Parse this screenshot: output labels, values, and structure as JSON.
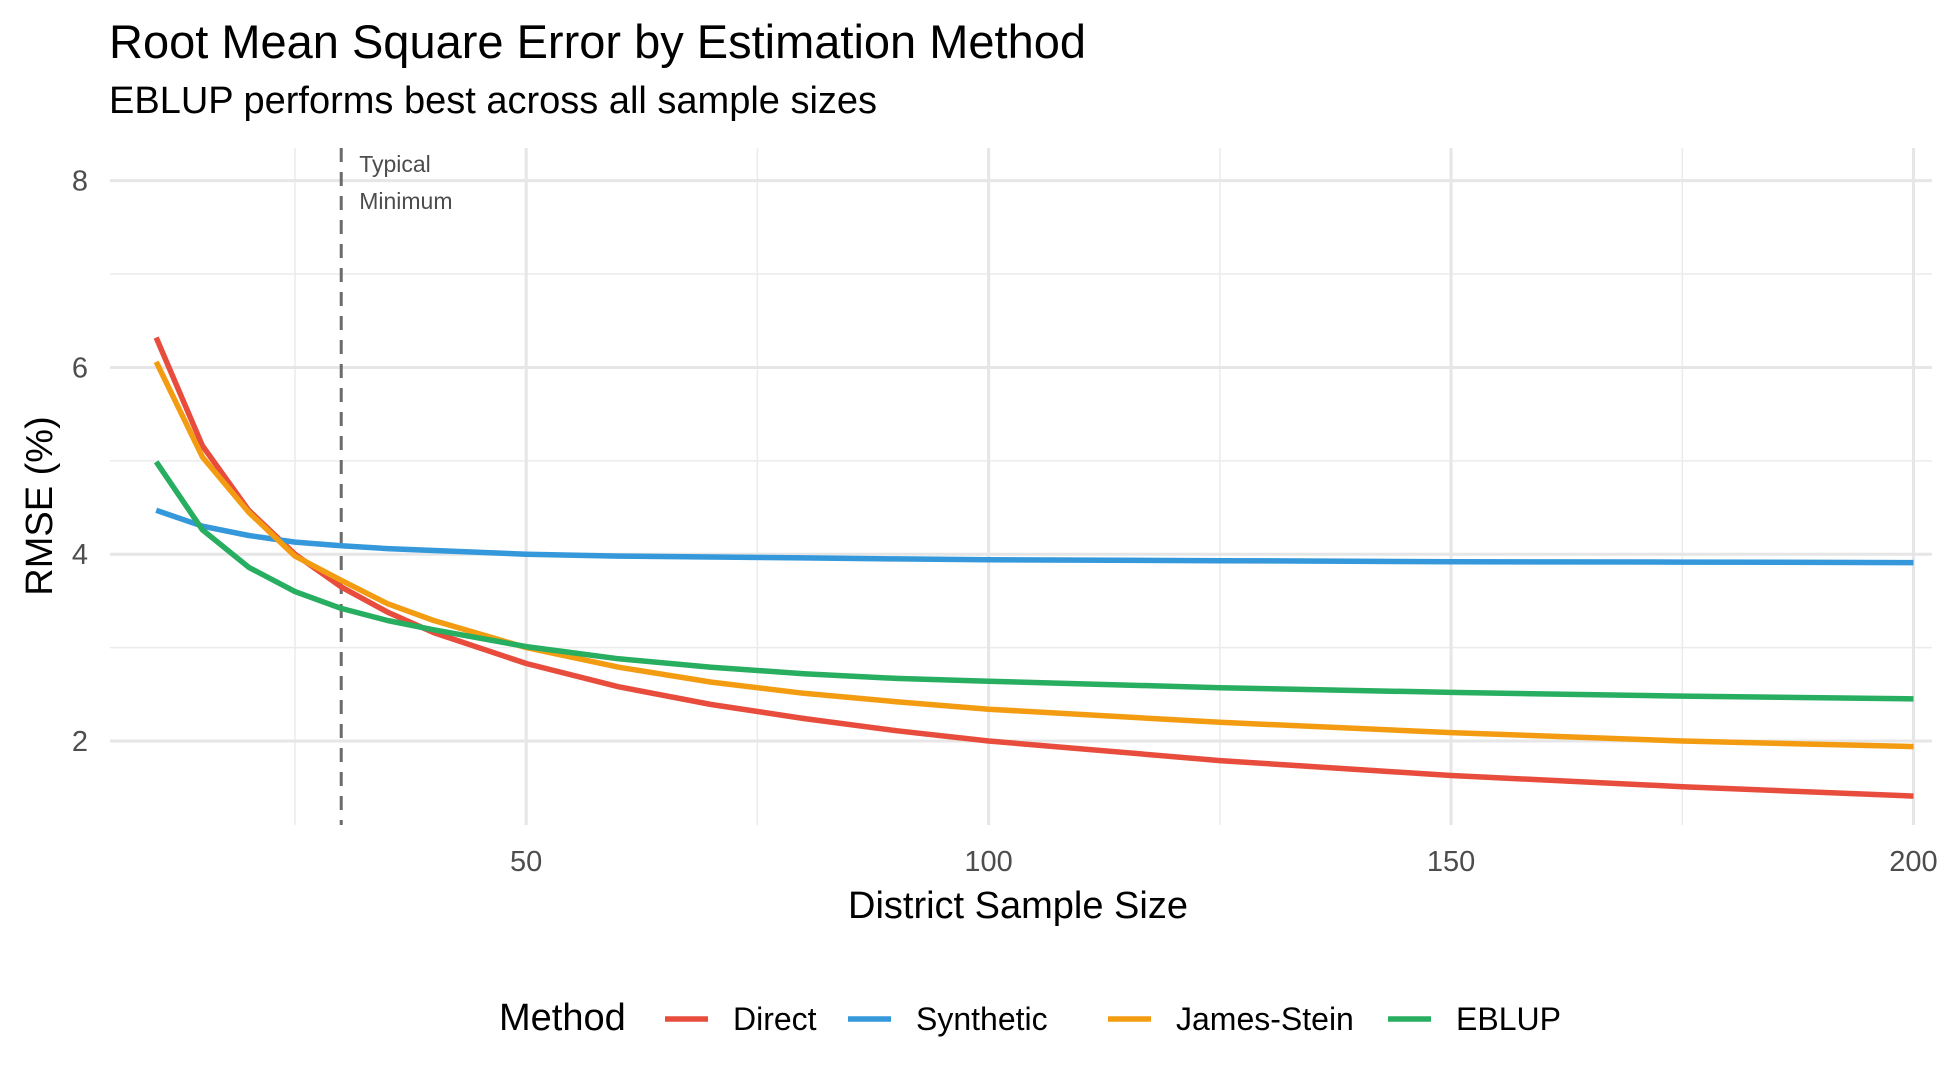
{
  "chart_data": {
    "type": "line",
    "title": "Root Mean Square Error by Estimation Method",
    "subtitle": "EBLUP performs best across all sample sizes",
    "xlabel": "District Sample Size",
    "ylabel": "RMSE (%)",
    "xlim": [
      5,
      202
    ],
    "ylim": [
      1.1,
      8.35
    ],
    "x_ticks": [
      50,
      100,
      150,
      200
    ],
    "x_tick_labels": [
      "50",
      "100",
      "150",
      "200"
    ],
    "y_ticks": [
      2,
      4,
      6,
      8
    ],
    "y_tick_labels": [
      "2",
      "4",
      "6",
      "8"
    ],
    "grid": true,
    "legend_title": "Method",
    "legend_position": "bottom",
    "reference_line": {
      "x": 30,
      "style": "dashed",
      "label_line1": "Typical",
      "label_line2": "Minimum"
    },
    "x": [
      10,
      15,
      20,
      25,
      30,
      35,
      40,
      50,
      60,
      70,
      80,
      90,
      100,
      125,
      150,
      175,
      200
    ],
    "series": [
      {
        "name": "Direct",
        "color": "#E74C3C",
        "values": [
          6.32,
          5.16,
          4.47,
          4.0,
          3.65,
          3.38,
          3.16,
          2.83,
          2.58,
          2.39,
          2.24,
          2.11,
          2.0,
          1.79,
          1.63,
          1.51,
          1.41
        ]
      },
      {
        "name": "Synthetic",
        "color": "#3498DB",
        "values": [
          4.47,
          4.3,
          4.2,
          4.13,
          4.09,
          4.06,
          4.04,
          4.0,
          3.98,
          3.97,
          3.96,
          3.95,
          3.94,
          3.93,
          3.92,
          3.915,
          3.91
        ]
      },
      {
        "name": "James-Stein",
        "color": "#F39C12",
        "values": [
          6.06,
          5.04,
          4.45,
          3.98,
          3.72,
          3.47,
          3.29,
          3.0,
          2.79,
          2.63,
          2.51,
          2.42,
          2.34,
          2.2,
          2.09,
          2.0,
          1.94
        ]
      },
      {
        "name": "EBLUP",
        "color": "#27AE60",
        "values": [
          4.99,
          4.26,
          3.86,
          3.6,
          3.42,
          3.29,
          3.19,
          3.01,
          2.88,
          2.79,
          2.72,
          2.67,
          2.64,
          2.57,
          2.52,
          2.48,
          2.45
        ]
      }
    ]
  }
}
